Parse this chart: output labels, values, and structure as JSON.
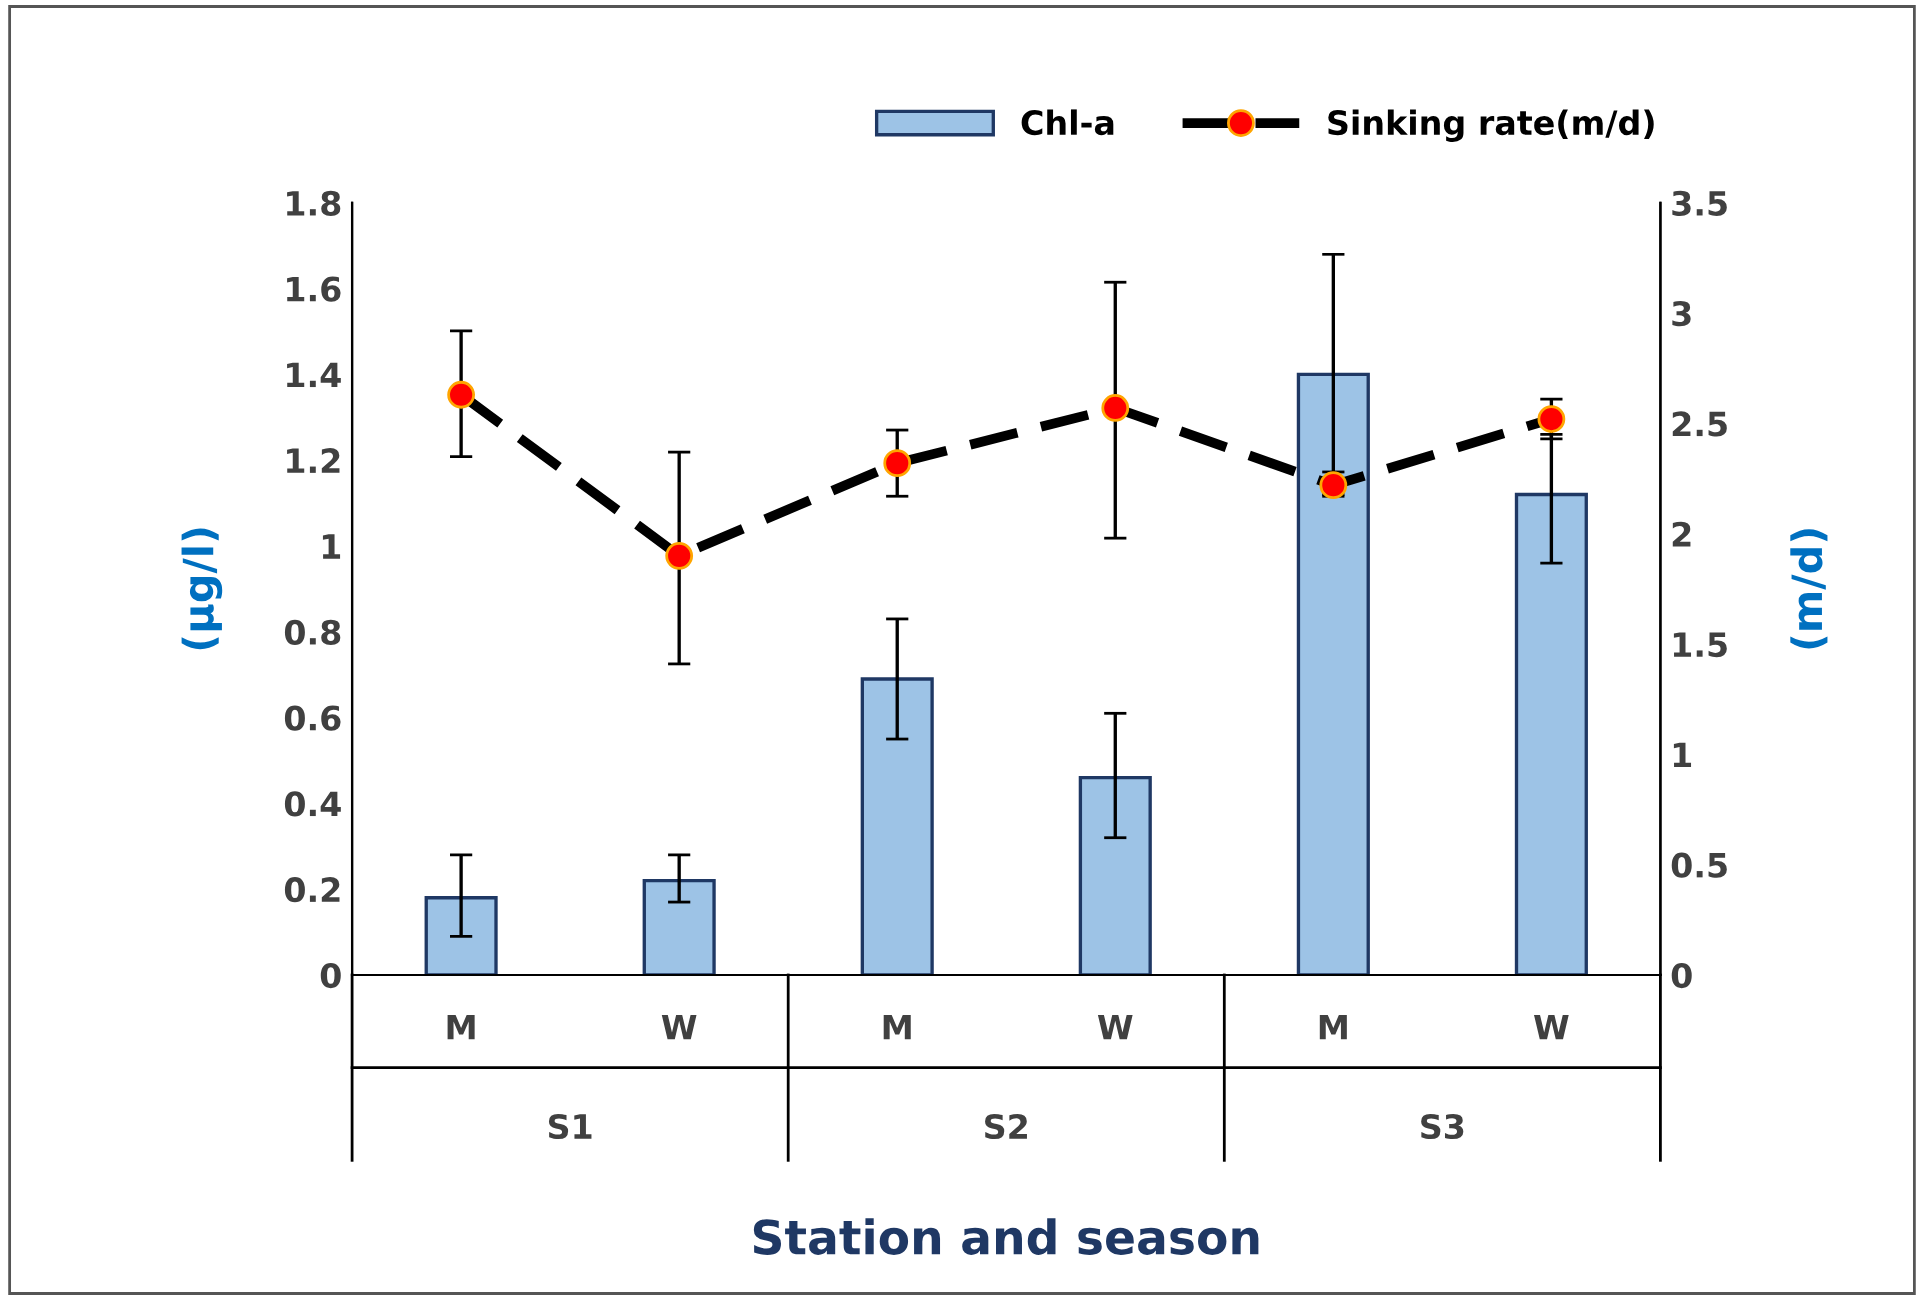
{
  "chart_data": {
    "type": "bar",
    "xlabel": "Station and season",
    "ylabel": "(µg/l)",
    "y2label": "(m/d)",
    "categories": [
      "M",
      "W",
      "M",
      "W",
      "M",
      "W"
    ],
    "annotations": [
      "S1",
      "S2",
      "S3"
    ],
    "series": [
      {
        "name": "Chl-a",
        "color": "#9dc3e6",
        "values": [
          0.18,
          0.22,
          0.69,
          0.46,
          1.4,
          1.12
        ],
        "errors": [
          [
            0.09,
            0.28
          ],
          [
            0.17,
            0.28
          ],
          [
            0.55,
            0.83
          ],
          [
            0.32,
            0.61
          ],
          [
            1.12,
            1.68
          ],
          [
            0.96,
            1.26
          ]
        ]
      },
      {
        "name": "Sinking rate(m/d)",
        "type": "line",
        "axis": "y2",
        "color": "#000000",
        "marker": "circle",
        "line_style": "dashed",
        "values": [
          2.63,
          1.9,
          2.32,
          2.57,
          2.22,
          2.52
        ],
        "errors": [
          [
            2.35,
            2.92
          ],
          [
            1.41,
            2.37
          ],
          [
            2.17,
            2.47
          ],
          [
            1.98,
            3.14
          ],
          [
            2.17,
            2.28
          ],
          [
            2.43,
            2.61
          ]
        ]
      }
    ],
    "ylim": [
      0,
      1.8
    ],
    "yticks": [
      0,
      0.2,
      0.4,
      0.6,
      0.8,
      1,
      1.2,
      1.4,
      1.6,
      1.8
    ],
    "y2lim": [
      0,
      3.5
    ],
    "y2ticks": [
      0,
      0.5,
      1,
      1.5,
      2,
      2.5,
      3,
      3.5
    ],
    "grid": false,
    "legend": "top right"
  }
}
